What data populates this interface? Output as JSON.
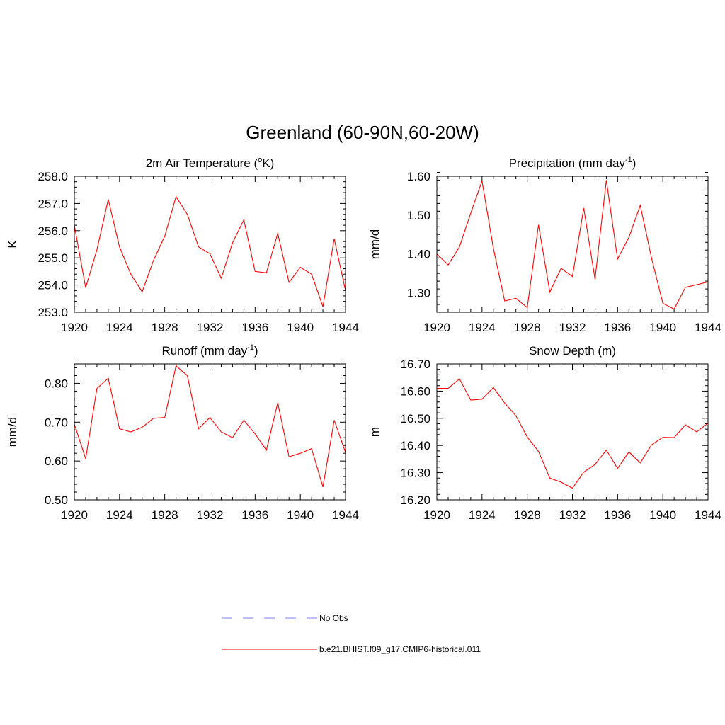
{
  "figure": {
    "title": "Greenland (60-90N,60-20W)"
  },
  "legend": {
    "items": [
      {
        "label": "No Obs",
        "color": "#9999ff",
        "dashed": true
      },
      {
        "label": "b.e21.BHIST.f09_g17.CMIP6-historical.011",
        "color": "#ff0000",
        "dashed": false
      }
    ]
  },
  "chart_data": [
    {
      "type": "line",
      "title": "2m Air Temperature (",
      "title_sup": "o",
      "title_after": "K)",
      "ylabel": "K",
      "xlim": [
        1920,
        1944
      ],
      "ylim": [
        253.0,
        258.0
      ],
      "xticks": [
        "1920",
        "1924",
        "1928",
        "1932",
        "1936",
        "1940",
        "1944"
      ],
      "yticks": [
        "253.0",
        "254.0",
        "255.0",
        "256.0",
        "257.0",
        "258.0"
      ],
      "series": [
        {
          "color": "#ff0000",
          "x": [
            1920,
            1921,
            1922,
            1923,
            1924,
            1925,
            1926,
            1927,
            1928,
            1929,
            1930,
            1931,
            1932,
            1933,
            1934,
            1935,
            1936,
            1937,
            1938,
            1939,
            1940,
            1941,
            1942,
            1943,
            1944
          ],
          "values": [
            256.2,
            253.9,
            255.3,
            257.15,
            255.4,
            254.4,
            253.75,
            254.9,
            255.8,
            257.25,
            256.6,
            255.4,
            255.15,
            254.25,
            255.55,
            256.4,
            254.5,
            254.45,
            255.9,
            254.1,
            254.65,
            254.4,
            253.2,
            255.7,
            253.8
          ]
        }
      ]
    },
    {
      "type": "line",
      "title": "Precipitation (mm day",
      "title_sup": "-1",
      "title_after": ")",
      "ylabel": "mm/d",
      "xlim": [
        1920,
        1944
      ],
      "ylim": [
        1.25,
        1.6
      ],
      "xticks": [
        "1920",
        "1924",
        "1928",
        "1932",
        "1936",
        "1940",
        "1944"
      ],
      "yticks": [
        "1.30",
        "1.40",
        "1.50",
        "1.60"
      ],
      "series": [
        {
          "color": "#ff0000",
          "x": [
            1920,
            1921,
            1922,
            1923,
            1924,
            1925,
            1926,
            1927,
            1928,
            1929,
            1930,
            1931,
            1932,
            1933,
            1934,
            1935,
            1936,
            1937,
            1938,
            1939,
            1940,
            1941,
            1942,
            1943,
            1944
          ],
          "values": [
            1.4,
            1.372,
            1.418,
            1.505,
            1.588,
            1.415,
            1.279,
            1.286,
            1.262,
            1.475,
            1.302,
            1.363,
            1.342,
            1.518,
            1.335,
            1.59,
            1.387,
            1.443,
            1.525,
            1.39,
            1.273,
            1.258,
            1.314,
            1.321,
            1.328
          ]
        }
      ]
    },
    {
      "type": "line",
      "title": "Runoff (mm day",
      "title_sup": "-1",
      "title_after": ")",
      "ylabel": "mm/d",
      "xlim": [
        1920,
        1944
      ],
      "ylim": [
        0.5,
        0.85
      ],
      "xticks": [
        "1920",
        "1924",
        "1928",
        "1932",
        "1936",
        "1940",
        "1944"
      ],
      "yticks": [
        "0.50",
        "0.60",
        "0.70",
        "0.80"
      ],
      "series": [
        {
          "color": "#ff0000",
          "x": [
            1920,
            1921,
            1922,
            1923,
            1924,
            1925,
            1926,
            1927,
            1928,
            1929,
            1930,
            1931,
            1932,
            1933,
            1934,
            1935,
            1936,
            1937,
            1938,
            1939,
            1940,
            1941,
            1942,
            1943,
            1944
          ],
          "values": [
            0.695,
            0.606,
            0.787,
            0.813,
            0.683,
            0.675,
            0.687,
            0.71,
            0.712,
            0.845,
            0.82,
            0.683,
            0.712,
            0.675,
            0.66,
            0.705,
            0.67,
            0.628,
            0.75,
            0.611,
            0.62,
            0.632,
            0.533,
            0.705,
            0.622
          ]
        }
      ]
    },
    {
      "type": "line",
      "title": "Snow Depth (m)",
      "title_sup": "",
      "title_after": "",
      "ylabel": "m",
      "xlim": [
        1920,
        1944
      ],
      "ylim": [
        16.2,
        16.7
      ],
      "xticks": [
        "1920",
        "1924",
        "1928",
        "1932",
        "1936",
        "1940",
        "1944"
      ],
      "yticks": [
        "16.20",
        "16.30",
        "16.40",
        "16.50",
        "16.60",
        "16.70"
      ],
      "series": [
        {
          "color": "#ff0000",
          "x": [
            1920,
            1921,
            1922,
            1923,
            1924,
            1925,
            1926,
            1927,
            1928,
            1929,
            1930,
            1931,
            1932,
            1933,
            1934,
            1935,
            1936,
            1937,
            1938,
            1939,
            1940,
            1941,
            1942,
            1943,
            1944
          ],
          "values": [
            16.61,
            16.61,
            16.645,
            16.567,
            16.57,
            16.613,
            16.556,
            16.509,
            16.431,
            16.378,
            16.28,
            16.265,
            16.243,
            16.302,
            16.33,
            16.383,
            16.316,
            16.376,
            16.336,
            16.402,
            16.43,
            16.429,
            16.476,
            16.45,
            16.482
          ]
        }
      ]
    }
  ]
}
